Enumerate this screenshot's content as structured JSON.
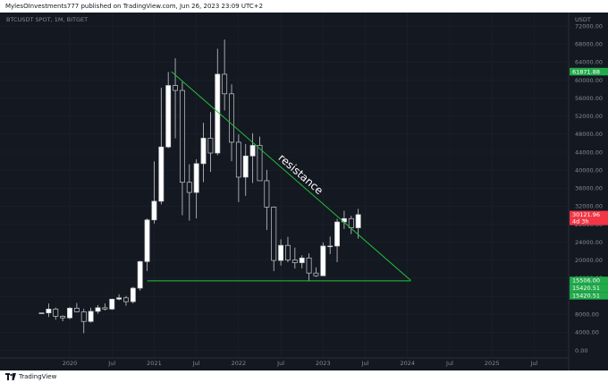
{
  "header": {
    "publisher": "MylesOInvestments777 published on TradingView.com, Jun 26, 2023 23:09 UTC+2"
  },
  "footer": {
    "brand": "TradingView"
  },
  "chart_data": {
    "type": "candlestick",
    "symbol": "BTCUSDT SPOT, 1M, BITGET",
    "currency": "USDT",
    "ylim": [
      -1500,
      75000
    ],
    "y_ticks": [
      0,
      4000,
      8000,
      12000,
      16000,
      20000,
      24000,
      28000,
      32000,
      36000,
      40000,
      44000,
      48000,
      52000,
      56000,
      60000,
      64000,
      68000,
      72000
    ],
    "y_tick_labels": [
      "0.00",
      "4000.00",
      "8000.00",
      "12000.00",
      "16000.00",
      "20000.00",
      "24000.00",
      "28000.00",
      "32000.00",
      "36000.00",
      "40000.00",
      "44000.00",
      "48000.00",
      "52000.00",
      "56000.00",
      "60000.00",
      "64000.00",
      "68000.00",
      "72000.00"
    ],
    "x_labels": [
      {
        "label": "2020",
        "date": "2020-01"
      },
      {
        "label": "Jul",
        "date": "2020-07"
      },
      {
        "label": "2021",
        "date": "2021-01"
      },
      {
        "label": "Jul",
        "date": "2021-07"
      },
      {
        "label": "2022",
        "date": "2022-01"
      },
      {
        "label": "Jul",
        "date": "2022-07"
      },
      {
        "label": "2023",
        "date": "2023-01"
      },
      {
        "label": "Jul",
        "date": "2023-07"
      },
      {
        "label": "2024",
        "date": "2024-01"
      },
      {
        "label": "Jul",
        "date": "2024-07"
      },
      {
        "label": "2025",
        "date": "2025-01"
      },
      {
        "label": "Jul",
        "date": "2025-07"
      }
    ],
    "candles": [
      {
        "date": "2019-09",
        "open": 8300,
        "high": 8300,
        "low": 8300,
        "close": 8300
      },
      {
        "date": "2019-10",
        "open": 8300,
        "high": 10400,
        "low": 7400,
        "close": 9150
      },
      {
        "date": "2019-11",
        "open": 9150,
        "high": 9500,
        "low": 6800,
        "close": 7550
      },
      {
        "date": "2019-12",
        "open": 7550,
        "high": 7750,
        "low": 6450,
        "close": 7200
      },
      {
        "date": "2020-01",
        "open": 7200,
        "high": 9600,
        "low": 6900,
        "close": 9350
      },
      {
        "date": "2020-02",
        "open": 9350,
        "high": 10500,
        "low": 8450,
        "close": 8550
      },
      {
        "date": "2020-03",
        "open": 8550,
        "high": 9200,
        "low": 3800,
        "close": 6400
      },
      {
        "date": "2020-04",
        "open": 6400,
        "high": 9450,
        "low": 6150,
        "close": 8650
      },
      {
        "date": "2020-05",
        "open": 8650,
        "high": 10050,
        "low": 8100,
        "close": 9450
      },
      {
        "date": "2020-06",
        "open": 9450,
        "high": 10400,
        "low": 8850,
        "close": 9150
      },
      {
        "date": "2020-07",
        "open": 9150,
        "high": 11450,
        "low": 8950,
        "close": 11350
      },
      {
        "date": "2020-08",
        "open": 11350,
        "high": 12450,
        "low": 11100,
        "close": 11650
      },
      {
        "date": "2020-09",
        "open": 11650,
        "high": 12050,
        "low": 9900,
        "close": 10800
      },
      {
        "date": "2020-10",
        "open": 10800,
        "high": 14100,
        "low": 10400,
        "close": 13800
      },
      {
        "date": "2020-11",
        "open": 13800,
        "high": 19900,
        "low": 13250,
        "close": 19700
      },
      {
        "date": "2020-12",
        "open": 19700,
        "high": 29300,
        "low": 17600,
        "close": 28950
      },
      {
        "date": "2021-01",
        "open": 28950,
        "high": 41950,
        "low": 28150,
        "close": 33100
      },
      {
        "date": "2021-02",
        "open": 33100,
        "high": 58300,
        "low": 32400,
        "close": 45150
      },
      {
        "date": "2021-03",
        "open": 45150,
        "high": 61800,
        "low": 44900,
        "close": 58800
      },
      {
        "date": "2021-04",
        "open": 58800,
        "high": 64850,
        "low": 47050,
        "close": 57700
      },
      {
        "date": "2021-05",
        "open": 57700,
        "high": 59600,
        "low": 30000,
        "close": 37300
      },
      {
        "date": "2021-06",
        "open": 37300,
        "high": 41300,
        "low": 28800,
        "close": 35050
      },
      {
        "date": "2021-07",
        "open": 35050,
        "high": 42400,
        "low": 29300,
        "close": 41450
      },
      {
        "date": "2021-08",
        "open": 41450,
        "high": 50500,
        "low": 37350,
        "close": 47100
      },
      {
        "date": "2021-09",
        "open": 47100,
        "high": 52900,
        "low": 39600,
        "close": 43800
      },
      {
        "date": "2021-10",
        "open": 43800,
        "high": 66950,
        "low": 43300,
        "close": 61300
      },
      {
        "date": "2021-11",
        "open": 61300,
        "high": 69000,
        "low": 53250,
        "close": 56950
      },
      {
        "date": "2021-12",
        "open": 56950,
        "high": 59050,
        "low": 42000,
        "close": 46200
      },
      {
        "date": "2022-01",
        "open": 46200,
        "high": 47950,
        "low": 32900,
        "close": 38450
      },
      {
        "date": "2022-02",
        "open": 38450,
        "high": 45800,
        "low": 34300,
        "close": 43150
      },
      {
        "date": "2022-03",
        "open": 43150,
        "high": 48200,
        "low": 37150,
        "close": 45500
      },
      {
        "date": "2022-04",
        "open": 45500,
        "high": 47450,
        "low": 37700,
        "close": 37650
      },
      {
        "date": "2022-05",
        "open": 37650,
        "high": 40050,
        "low": 26700,
        "close": 31800
      },
      {
        "date": "2022-06",
        "open": 31800,
        "high": 31950,
        "low": 17600,
        "close": 19950
      },
      {
        "date": "2022-07",
        "open": 19950,
        "high": 24650,
        "low": 18800,
        "close": 23300
      },
      {
        "date": "2022-08",
        "open": 23300,
        "high": 25200,
        "low": 19550,
        "close": 20050
      },
      {
        "date": "2022-09",
        "open": 20050,
        "high": 22800,
        "low": 18150,
        "close": 19450
      },
      {
        "date": "2022-10",
        "open": 19450,
        "high": 21100,
        "low": 18200,
        "close": 20500
      },
      {
        "date": "2022-11",
        "open": 20500,
        "high": 21500,
        "low": 15500,
        "close": 17150
      },
      {
        "date": "2022-12",
        "open": 17150,
        "high": 18400,
        "low": 16300,
        "close": 16550
      },
      {
        "date": "2023-01",
        "open": 16550,
        "high": 23950,
        "low": 16500,
        "close": 23150
      },
      {
        "date": "2023-02",
        "open": 23150,
        "high": 25250,
        "low": 21350,
        "close": 23150
      },
      {
        "date": "2023-03",
        "open": 23150,
        "high": 29200,
        "low": 19550,
        "close": 28500
      },
      {
        "date": "2023-04",
        "open": 28500,
        "high": 31000,
        "low": 26950,
        "close": 29250
      },
      {
        "date": "2023-05",
        "open": 29250,
        "high": 29850,
        "low": 25800,
        "close": 27200
      },
      {
        "date": "2023-06",
        "open": 27200,
        "high": 31400,
        "low": 24800,
        "close": 30121.96
      }
    ],
    "annotations": [
      {
        "type": "trendline",
        "name": "resistance-line",
        "from": {
          "date": "2021-03-15",
          "value": 61871.88
        },
        "to": {
          "date": "2024-01-15",
          "value": 15506
        }
      },
      {
        "type": "trendline",
        "name": "support-line",
        "from": {
          "date": "2020-12-01",
          "value": 15420.51
        },
        "to": {
          "date": "2024-01-15",
          "value": 15420.51
        }
      },
      {
        "type": "text",
        "name": "resistance-label",
        "text": "resistance"
      }
    ],
    "price_labels": [
      {
        "name": "resistance-top-label",
        "value": 61871.88,
        "label": "61871.88",
        "color": "#22ab4b"
      },
      {
        "name": "current-price-label",
        "value": 30121.96,
        "label": "30121.96",
        "sublabel": "4d 3h",
        "color": "#f23645"
      },
      {
        "name": "resistance-end-label",
        "value": 15506,
        "label": "15506.00",
        "color": "#22ab4b"
      },
      {
        "name": "support-label-1",
        "value": 15420.51,
        "label": "15420.51",
        "color": "#22ab4b"
      },
      {
        "name": "support-label-2",
        "value": 15420.51,
        "label": "15420.51",
        "color": "#22ab4b"
      }
    ],
    "colors": {
      "up": "#ffffff",
      "down": "#141821",
      "wick": "#c8cad0",
      "line": "#22c43a",
      "background": "#141821",
      "grid": "#1f2430",
      "axis_text": "#868993"
    },
    "grid": true
  }
}
